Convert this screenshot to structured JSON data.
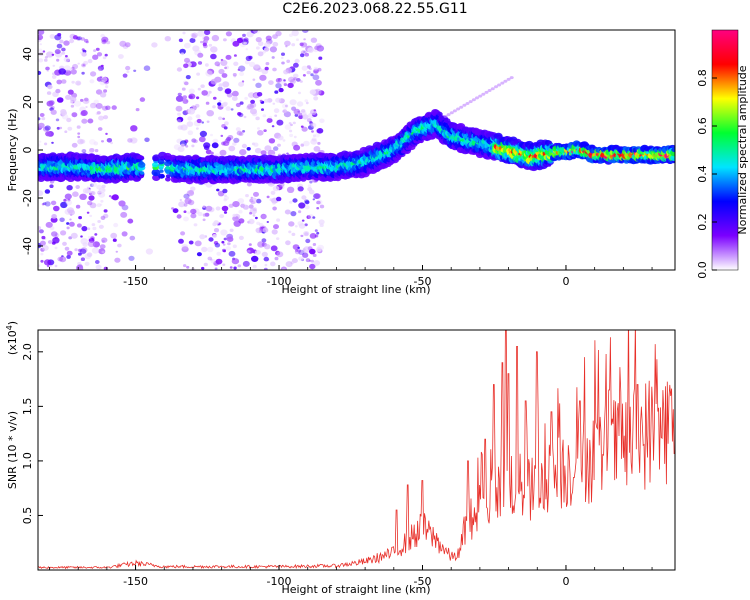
{
  "chart_data": [
    {
      "type": "heatmap",
      "title": "C2E6.2023.068.22.55.G11",
      "xlabel": "Height of straight line (km)",
      "ylabel": "Frequency (Hz)",
      "xlim": [
        -184,
        38
      ],
      "ylim": [
        -50,
        50
      ],
      "x_ticks": [
        -150,
        -100,
        -50,
        0
      ],
      "y_ticks": [
        -40,
        -20,
        0,
        20,
        40
      ],
      "colorbar": {
        "label": "Normalized spectral amplitude",
        "range": [
          0,
          1
        ],
        "ticks": [
          0.0,
          0.2,
          0.4,
          0.6,
          0.8
        ],
        "colors": [
          "#ffffff",
          "#7b00ff",
          "#0000ff",
          "#00e5ff",
          "#00ff30",
          "#ffff00",
          "#ff0000",
          "#ff0080"
        ]
      },
      "ridge": {
        "x": [
          -180,
          -170,
          -160,
          -150,
          -140,
          -133,
          -100,
          -90,
          -80,
          -70,
          -60,
          -52,
          -45,
          -40,
          -30,
          -20,
          -12,
          -5,
          5,
          10,
          20,
          30,
          38
        ],
        "y": [
          -7,
          -7,
          -8,
          -7,
          -7,
          -8,
          -8,
          -7,
          -7,
          -5,
          0,
          8,
          11,
          6,
          3,
          0,
          -3,
          -1,
          0,
          -2,
          -2,
          -2,
          -2
        ]
      }
    },
    {
      "type": "line",
      "xlabel": "Height of straight line (km)",
      "ylabel": "SNR (10 * v/v)",
      "y_multiplier": "(x10",
      "y_multiplier_exp": "4",
      "y_multiplier_close": ")",
      "xlim": [
        -184,
        38
      ],
      "ylim": [
        0,
        2.2
      ],
      "x_ticks": [
        -150,
        -100,
        -50,
        0
      ],
      "y_ticks": [
        0.5,
        1.0,
        1.5,
        2.0
      ],
      "color": "#e8302a",
      "series_envelope": {
        "x": [
          -184,
          -160,
          -150,
          -140,
          -100,
          -80,
          -70,
          -60,
          -55,
          -50,
          -45,
          -40,
          -37,
          -35,
          -30,
          -25,
          -21,
          -15,
          -10,
          -5,
          0,
          10,
          20,
          30,
          38
        ],
        "y": [
          0.03,
          0.03,
          0.08,
          0.04,
          0.04,
          0.05,
          0.1,
          0.2,
          0.35,
          0.5,
          0.35,
          0.15,
          0.2,
          0.55,
          0.7,
          0.9,
          1.1,
          0.95,
          0.95,
          1.1,
          1.2,
          1.35,
          1.5,
          1.65,
          1.72
        ]
      },
      "spikes": [
        {
          "x": -59,
          "y": 0.55
        },
        {
          "x": -55,
          "y": 0.78
        },
        {
          "x": -50,
          "y": 0.82
        },
        {
          "x": -34,
          "y": 1.0
        },
        {
          "x": -28,
          "y": 1.2
        },
        {
          "x": -25,
          "y": 1.7
        },
        {
          "x": -22,
          "y": 1.9
        },
        {
          "x": -21,
          "y": 2.2
        },
        {
          "x": -20,
          "y": 1.8
        },
        {
          "x": -17,
          "y": 2.05
        },
        {
          "x": -14,
          "y": 1.55
        },
        {
          "x": -10,
          "y": 2.0
        },
        {
          "x": -5,
          "y": 1.45
        },
        {
          "x": 5,
          "y": 1.55
        },
        {
          "x": 15,
          "y": 1.65
        },
        {
          "x": 25,
          "y": 1.7
        }
      ]
    }
  ]
}
